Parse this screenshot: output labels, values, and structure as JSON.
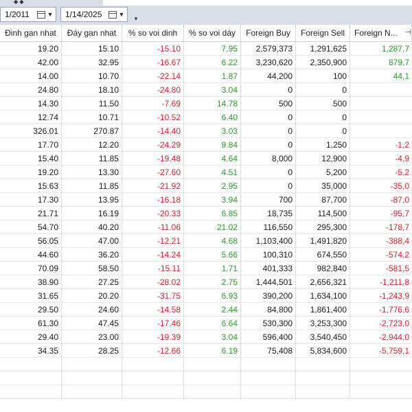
{
  "toolbar": {
    "date_from": "1/2011",
    "date_to": "1/14/2025"
  },
  "columns": [
    "Đinh gan nhat",
    "Đáy gan nhat",
    "% so voi dinh",
    "% so voi dáy",
    "Foreign Buy",
    "Foreign Sell",
    "Foreign N..."
  ],
  "rows": [
    [
      "19.20",
      "15.10",
      "-15.10",
      "7.95",
      "2,579,373",
      "1,291,625",
      "1,287,7"
    ],
    [
      "42.00",
      "32.95",
      "-16.67",
      "6.22",
      "3,230,620",
      "2,350,900",
      "879,7"
    ],
    [
      "14.00",
      "10.70",
      "-22.14",
      "1.87",
      "44,200",
      "100",
      "44,1"
    ],
    [
      "24.80",
      "18.10",
      "-24.80",
      "3.04",
      "0",
      "0",
      ""
    ],
    [
      "14.30",
      "11.50",
      "-7.69",
      "14.78",
      "500",
      "500",
      ""
    ],
    [
      "12.74",
      "10.71",
      "-10.52",
      "6.40",
      "0",
      "0",
      ""
    ],
    [
      "326.01",
      "270.87",
      "-14.40",
      "3.03",
      "0",
      "0",
      ""
    ],
    [
      "17.70",
      "12.20",
      "-24.29",
      "9.84",
      "0",
      "1,250",
      "-1,2"
    ],
    [
      "15.40",
      "11.85",
      "-19.48",
      "4.64",
      "8,000",
      "12,900",
      "-4,9"
    ],
    [
      "19.20",
      "13.30",
      "-27.60",
      "4.51",
      "0",
      "5,200",
      "-5,2"
    ],
    [
      "15.63",
      "11.85",
      "-21.92",
      "2.95",
      "0",
      "35,000",
      "-35,0"
    ],
    [
      "17.30",
      "13.95",
      "-16.18",
      "3.94",
      "700",
      "87,700",
      "-87,0"
    ],
    [
      "21.71",
      "16.19",
      "-20.33",
      "6.85",
      "18,735",
      "114,500",
      "-95,7"
    ],
    [
      "54.70",
      "40.20",
      "-11.06",
      "21.02",
      "116,550",
      "295,300",
      "-178,7"
    ],
    [
      "56.05",
      "47.00",
      "-12.21",
      "4.68",
      "1,103,400",
      "1,491,820",
      "-388,4"
    ],
    [
      "44.60",
      "36.20",
      "-14.24",
      "5.66",
      "100,310",
      "674,550",
      "-574,2"
    ],
    [
      "70.09",
      "58.50",
      "-15.11",
      "1.71",
      "401,333",
      "982,840",
      "-581,5"
    ],
    [
      "38.90",
      "27.25",
      "-28.02",
      "2.75",
      "1,444,501",
      "2,656,321",
      "-1,211,8"
    ],
    [
      "31.65",
      "20.20",
      "-31.75",
      "6.93",
      "390,200",
      "1,634,100",
      "-1,243,9"
    ],
    [
      "29.50",
      "24.60",
      "-14.58",
      "2.44",
      "84,800",
      "1,861,400",
      "-1,776,6"
    ],
    [
      "61.30",
      "47.45",
      "-17.46",
      "6.64",
      "530,300",
      "3,253,300",
      "-2,723,0"
    ],
    [
      "29.40",
      "23.00",
      "-19.39",
      "3.04",
      "596,400",
      "3,540,450",
      "-2,944,0"
    ],
    [
      "34.35",
      "28.25",
      "-12.66",
      "6.19",
      "75,408",
      "5,834,600",
      "-5,759,1"
    ]
  ],
  "empty_row_count": 3,
  "colors": {
    "negative": "#c9252c",
    "positive": "#2a9a2a",
    "toolbar_bg": "#d8dee7"
  },
  "icons": [
    "calendar-icon",
    "dropdown-arrow-icon",
    "filter-icon",
    "pin-icon"
  ]
}
